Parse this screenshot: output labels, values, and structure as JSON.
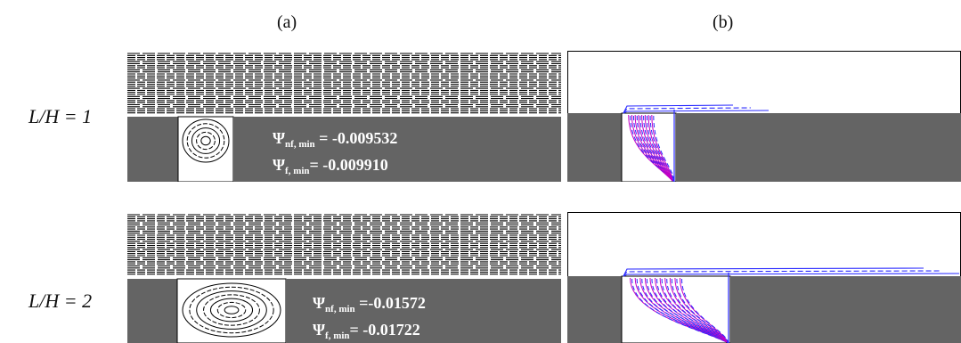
{
  "panels": {
    "a": "(a)",
    "b": "(b)"
  },
  "rows": [
    {
      "label": "L/H = 1",
      "psi_nf": {
        "symbol": "Ψ",
        "sub": "nf, min",
        "value": " = -0.009532"
      },
      "psi_f": {
        "symbol": "Ψ",
        "sub": "f, min",
        "value": "= -0.009910"
      }
    },
    {
      "label": "L/H = 2",
      "psi_nf": {
        "symbol": "Ψ",
        "sub": "nf, min",
        "value": " =-0.01572"
      },
      "psi_f": {
        "symbol": "Ψ",
        "sub": "f, min",
        "value": "= -0.01722"
      }
    }
  ],
  "colors": {
    "solid": "#646464",
    "streamline": "#000000",
    "isotherm_solid": "#c400c4",
    "isotherm_dashed": "#2a2aff"
  }
}
